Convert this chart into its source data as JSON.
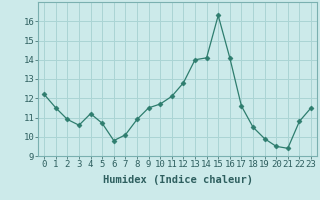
{
  "x": [
    0,
    1,
    2,
    3,
    4,
    5,
    6,
    7,
    8,
    9,
    10,
    11,
    12,
    13,
    14,
    15,
    16,
    17,
    18,
    19,
    20,
    21,
    22,
    23
  ],
  "y": [
    12.2,
    11.5,
    10.9,
    10.6,
    11.2,
    10.7,
    9.8,
    10.1,
    10.9,
    11.5,
    11.7,
    12.1,
    12.8,
    14.0,
    14.1,
    16.3,
    14.1,
    11.6,
    10.5,
    9.9,
    9.5,
    9.4,
    10.8,
    11.5
  ],
  "xlabel": "Humidex (Indice chaleur)",
  "xlim": [
    -0.5,
    23.5
  ],
  "ylim": [
    9,
    17
  ],
  "yticks": [
    9,
    10,
    11,
    12,
    13,
    14,
    15,
    16
  ],
  "xticks": [
    0,
    1,
    2,
    3,
    4,
    5,
    6,
    7,
    8,
    9,
    10,
    11,
    12,
    13,
    14,
    15,
    16,
    17,
    18,
    19,
    20,
    21,
    22,
    23
  ],
  "line_color": "#2e7d6e",
  "marker": "D",
  "marker_size": 2.5,
  "bg_color": "#cceaea",
  "grid_color": "#aad4d4",
  "label_fontsize": 7.5,
  "tick_fontsize": 6.5
}
